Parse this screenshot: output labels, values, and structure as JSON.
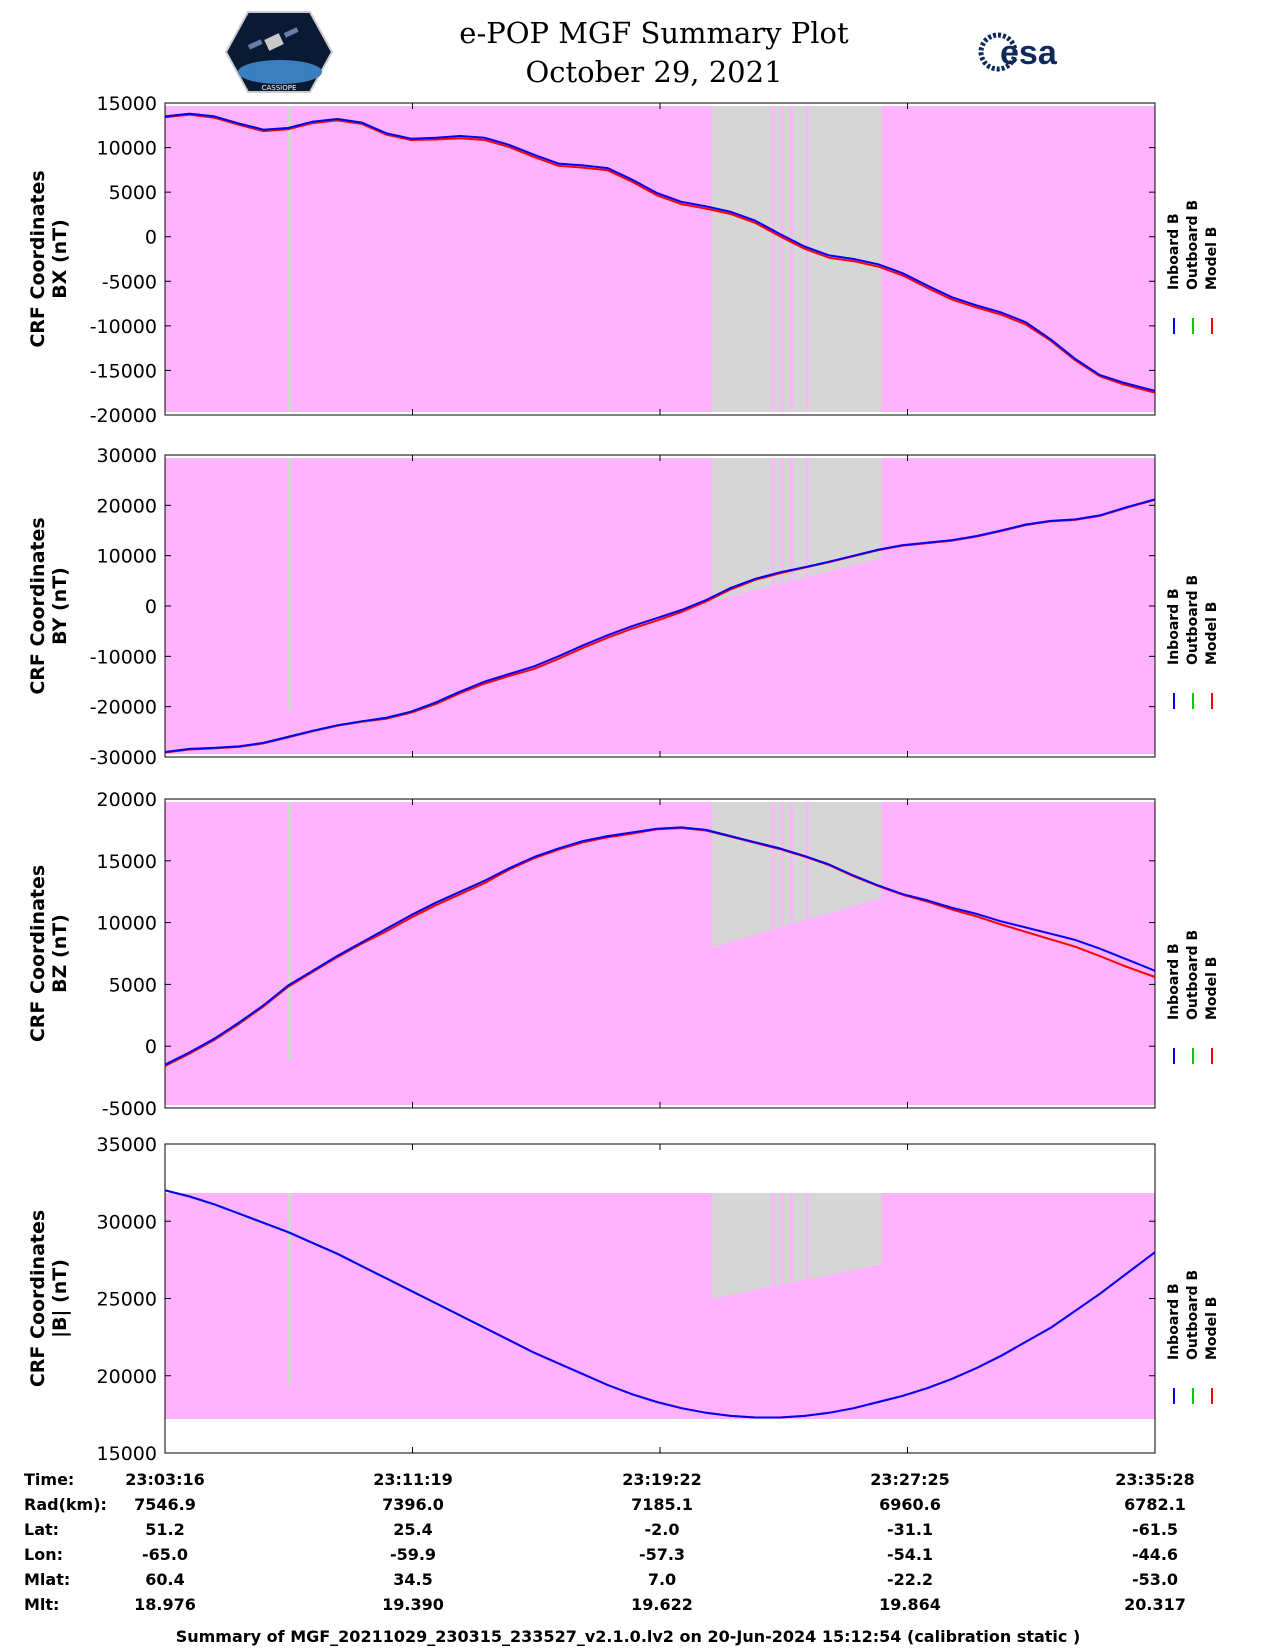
{
  "header": {
    "title_line1": "e-POP MGF Summary Plot",
    "title_line2": "October 29, 2021",
    "left_logo_text": "CASSIOPE",
    "right_logo_text": "esa"
  },
  "colors": {
    "background": "#ffb3ff",
    "gap": "#d6d6d6",
    "inboard": "#0000ff",
    "outboard": "#00cc00",
    "model": "#ff0000"
  },
  "legend": [
    "Inboard B",
    "Outboard B",
    "Model B"
  ],
  "chart_data": [
    {
      "type": "line",
      "title": "",
      "ylabel": [
        "CRF Coordinates",
        "BX (nT)"
      ],
      "ylim": [
        -20000,
        15000
      ],
      "yticks": [
        15000,
        10000,
        5000,
        0,
        -5000,
        -10000,
        -15000,
        -20000
      ],
      "x_minutes": [
        0,
        0.8,
        1.6,
        2.4,
        3.2,
        4.0,
        4.8,
        5.6,
        6.4,
        7.2,
        8.0,
        8.8,
        9.6,
        10.4,
        11.2,
        12.0,
        12.8,
        13.6,
        14.4,
        15.2,
        16.0,
        16.8,
        17.6,
        18.4,
        19.2,
        20.0,
        20.8,
        21.6,
        22.4,
        23.2,
        24.0,
        24.8,
        25.6,
        26.4,
        27.2,
        28.0,
        28.8,
        29.6,
        30.4,
        31.2,
        32.2
      ],
      "series": [
        {
          "name": "Inboard B",
          "values": [
            13500,
            13800,
            13500,
            12700,
            12000,
            12200,
            12900,
            13200,
            12800,
            11600,
            11000,
            11100,
            11300,
            11100,
            10300,
            9200,
            8200,
            8000,
            7700,
            6400,
            4900,
            3900,
            3400,
            2800,
            1800,
            300,
            -1100,
            -2100,
            -2500,
            -3100,
            -4100,
            -5500,
            -6800,
            -7700,
            -8500,
            -9600,
            -11500,
            -13700,
            -15500,
            -16400,
            -17300
          ]
        },
        {
          "name": "Outboard B",
          "values": [
            13500,
            13800,
            13500,
            12700,
            12000,
            12200,
            12900,
            13200,
            12800,
            11600,
            11000
          ]
        },
        {
          "name": "Model B",
          "values": [
            13400,
            13700,
            13350,
            12550,
            11850,
            12050,
            12750,
            13050,
            12650,
            11450,
            10850,
            10900,
            11050,
            10850,
            10050,
            8950,
            7950,
            7750,
            7450,
            6150,
            4650,
            3650,
            3150,
            2550,
            1550,
            50,
            -1350,
            -2350,
            -2750,
            -3350,
            -4350,
            -5750,
            -7050,
            -7950,
            -8750,
            -9850,
            -11650,
            -13850,
            -15650,
            -16600,
            -17500
          ]
        }
      ]
    },
    {
      "type": "line",
      "title": "",
      "ylabel": [
        "CRF Coordinates",
        "BY (nT)"
      ],
      "ylim": [
        -30000,
        30000
      ],
      "yticks": [
        30000,
        20000,
        10000,
        0,
        -10000,
        -20000,
        -30000
      ],
      "x_minutes": [
        0,
        0.8,
        1.6,
        2.4,
        3.2,
        4.0,
        4.8,
        5.6,
        6.4,
        7.2,
        8.0,
        8.8,
        9.6,
        10.4,
        11.2,
        12.0,
        12.8,
        13.6,
        14.4,
        15.2,
        16.0,
        16.8,
        17.6,
        18.4,
        19.2,
        20.0,
        20.8,
        21.6,
        22.4,
        23.2,
        24.0,
        24.8,
        25.6,
        26.4,
        27.2,
        28.0,
        28.8,
        29.6,
        30.4,
        31.2,
        32.2
      ],
      "series": [
        {
          "name": "Inboard B",
          "values": [
            -29000,
            -28400,
            -28200,
            -27900,
            -27200,
            -26000,
            -24800,
            -23700,
            -22900,
            -22200,
            -21000,
            -19200,
            -17000,
            -15000,
            -13500,
            -12000,
            -10000,
            -7800,
            -5800,
            -4000,
            -2400,
            -800,
            1200,
            3600,
            5400,
            6700,
            7700,
            8800,
            10000,
            11200,
            12100,
            12600,
            13100,
            13900,
            15000,
            16200,
            16900,
            17200,
            18000,
            19500,
            21200
          ]
        },
        {
          "name": "Outboard B",
          "values": [
            -29000,
            -28400,
            -28200,
            -27900,
            -27200,
            -26000,
            -24800,
            -23700,
            -22900,
            -22200,
            -21000,
            -19200,
            -17000
          ]
        },
        {
          "name": "Model B",
          "values": [
            -29100,
            -28500,
            -28300,
            -28000,
            -27300,
            -26100,
            -24900,
            -23800,
            -23000,
            -22400,
            -21200,
            -19500,
            -17300,
            -15400,
            -13900,
            -12500,
            -10500,
            -8300,
            -6300,
            -4500,
            -2900,
            -1200,
            900,
            3300,
            5200,
            6500,
            7600,
            8700,
            9900,
            11100,
            12000,
            12500,
            13000,
            13800,
            14900,
            16100,
            16800,
            17100,
            17900,
            19400,
            21100
          ]
        }
      ]
    },
    {
      "type": "line",
      "title": "",
      "ylabel": [
        "CRF Coordinates",
        "BZ (nT)"
      ],
      "ylim": [
        -5000,
        20000
      ],
      "yticks": [
        20000,
        15000,
        10000,
        5000,
        0,
        -5000
      ],
      "x_minutes": [
        0,
        0.8,
        1.6,
        2.4,
        3.2,
        4.0,
        4.8,
        5.6,
        6.4,
        7.2,
        8.0,
        8.8,
        9.6,
        10.4,
        11.2,
        12.0,
        12.8,
        13.6,
        14.4,
        15.2,
        16.0,
        16.8,
        17.6,
        18.4,
        19.2,
        20.0,
        20.8,
        21.6,
        22.4,
        23.2,
        24.0,
        24.8,
        25.6,
        26.4,
        27.2,
        28.0,
        28.8,
        29.6,
        30.4,
        31.2,
        32.2
      ],
      "series": [
        {
          "name": "Inboard B",
          "values": [
            -1500,
            -500,
            600,
            1900,
            3300,
            4900,
            6100,
            7300,
            8400,
            9500,
            10600,
            11600,
            12500,
            13400,
            14400,
            15300,
            16000,
            16600,
            17000,
            17300,
            17600,
            17700,
            17500,
            17000,
            16500,
            16000,
            15400,
            14700,
            13800,
            13000,
            12300,
            11800,
            11200,
            10700,
            10100,
            9600,
            9100,
            8600,
            7900,
            7100,
            6100
          ]
        },
        {
          "name": "Outboard B",
          "values": [
            -1500,
            -500,
            600,
            1900,
            3300,
            4900,
            6100,
            7300,
            8400,
            9500,
            10600,
            11600,
            12500,
            13400
          ]
        },
        {
          "name": "Model B",
          "values": [
            -1600,
            -600,
            500,
            1800,
            3200,
            4800,
            6000,
            7200,
            8300,
            9300,
            10400,
            11400,
            12300,
            13200,
            14300,
            15200,
            15900,
            16500,
            16900,
            17200,
            17550,
            17650,
            17450,
            16950,
            16450,
            15950,
            15350,
            14650,
            13750,
            12950,
            12250,
            11700,
            11050,
            10500,
            9850,
            9250,
            8650,
            8050,
            7300,
            6500,
            5600
          ]
        }
      ]
    },
    {
      "type": "line",
      "title": "",
      "ylabel": [
        "CRF Coordinates",
        "|B| (nT)"
      ],
      "ylim": [
        15000,
        35000
      ],
      "yticks": [
        35000,
        30000,
        25000,
        20000,
        15000
      ],
      "x_minutes": [
        0,
        0.8,
        1.6,
        2.4,
        3.2,
        4.0,
        4.8,
        5.6,
        6.4,
        7.2,
        8.0,
        8.8,
        9.6,
        10.4,
        11.2,
        12.0,
        12.8,
        13.6,
        14.4,
        15.2,
        16.0,
        16.8,
        17.6,
        18.4,
        19.2,
        20.0,
        20.8,
        21.6,
        22.4,
        23.2,
        24.0,
        24.8,
        25.6,
        26.4,
        27.2,
        28.0,
        28.8,
        29.6,
        30.4,
        31.2,
        32.2
      ],
      "series": [
        {
          "name": "Inboard B",
          "values": [
            32000,
            31600,
            31100,
            30500,
            29900,
            29300,
            28600,
            27900,
            27100,
            26300,
            25500,
            24700,
            23900,
            23100,
            22300,
            21500,
            20800,
            20100,
            19400,
            18800,
            18300,
            17900,
            17600,
            17400,
            17300,
            17300,
            17400,
            17600,
            17900,
            18300,
            18700,
            19200,
            19800,
            20500,
            21300,
            22200,
            23100,
            24200,
            25300,
            26500,
            28000
          ]
        },
        {
          "name": "Outboard B",
          "values": [
            32000,
            31600,
            31100,
            30500,
            29900,
            29300,
            28600,
            27900,
            27100,
            26300,
            25500,
            24700,
            23900,
            23100
          ]
        },
        {
          "name": "Model B",
          "values": [
            32000,
            31600,
            31100,
            30500,
            29900,
            29300,
            28600,
            27900,
            27100,
            26300,
            25500,
            24700,
            23900,
            23100,
            22300,
            21500,
            20800,
            20100,
            19400,
            18800,
            18300,
            17900,
            17600,
            17400,
            17300,
            17300,
            17400,
            17600,
            17900,
            18300,
            18700,
            19200,
            19800,
            20500,
            21300,
            22200,
            23100,
            24200,
            25300,
            26500,
            28000
          ]
        }
      ]
    }
  ],
  "info_table": {
    "rows": [
      {
        "label": "Time:",
        "values": [
          "23:03:16",
          "23:11:19",
          "23:19:22",
          "23:27:25",
          "23:35:28"
        ]
      },
      {
        "label": "Rad(km):",
        "values": [
          "7546.9",
          "7396.0",
          "7185.1",
          "6960.6",
          "6782.1"
        ]
      },
      {
        "label": "Lat:",
        "values": [
          "51.2",
          "25.4",
          "-2.0",
          "-31.1",
          "-61.5"
        ]
      },
      {
        "label": "Lon:",
        "values": [
          "-65.0",
          "-59.9",
          "-57.3",
          "-54.1",
          "-44.6"
        ]
      },
      {
        "label": "Mlat:",
        "values": [
          "60.4",
          "34.5",
          "7.0",
          "-22.2",
          "-53.0"
        ]
      },
      {
        "label": "Mlt:",
        "values": [
          "18.976",
          "19.390",
          "19.622",
          "19.864",
          "20.317"
        ]
      }
    ]
  },
  "footer": "Summary of MGF_20211029_230315_233527_v2.1.0.lv2 on 20-Jun-2024 15:12:54 (calibration static )"
}
